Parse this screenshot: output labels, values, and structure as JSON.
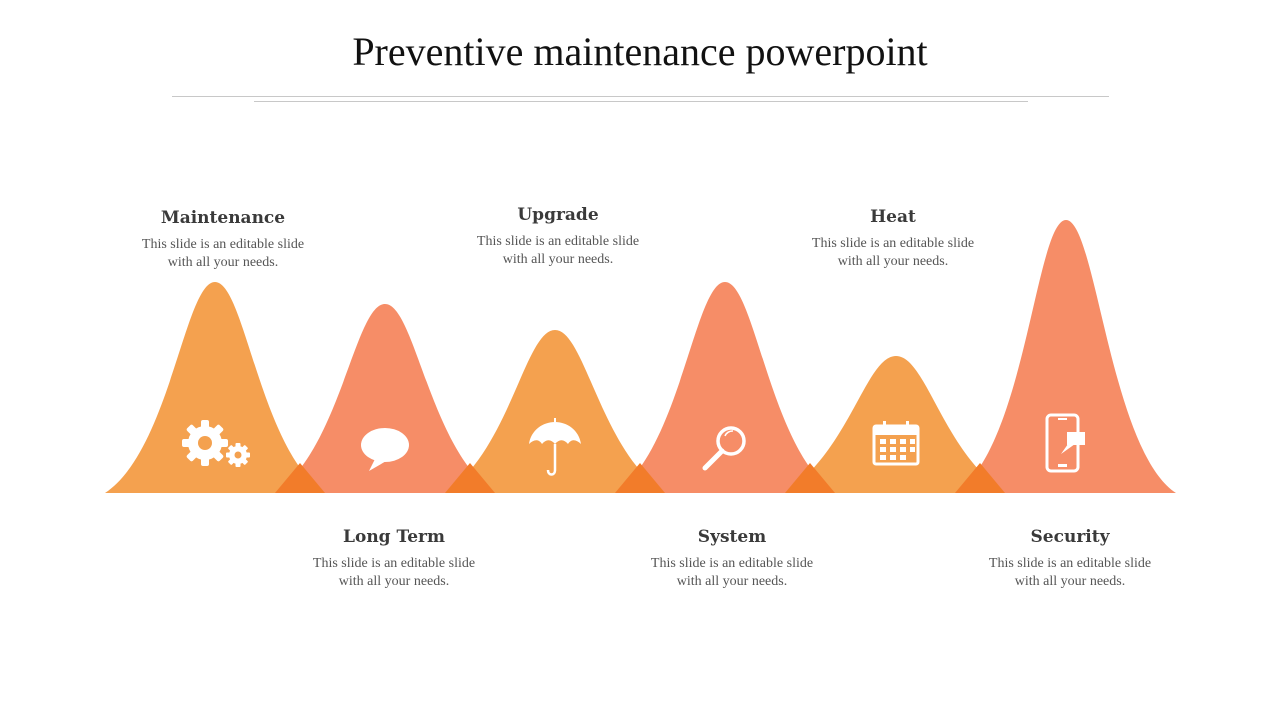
{
  "title": "Preventive maintenance powerpoint",
  "colors": {
    "orange": "#f4a14f",
    "salmon": "#f68d67",
    "overlap": "#f27c2a"
  },
  "items": [
    {
      "heading": "Maintenance",
      "desc": "This slide is an editable slide with all your needs.",
      "icon": "gears-icon"
    },
    {
      "heading": "Long Term",
      "desc": "This slide is an editable slide with all your needs.",
      "icon": "speech-bubble-icon"
    },
    {
      "heading": "Upgrade",
      "desc": "This slide is an editable slide with all your needs.",
      "icon": "umbrella-icon"
    },
    {
      "heading": "System",
      "desc": "This slide is an editable slide with all your needs.",
      "icon": "magnifier-icon"
    },
    {
      "heading": "Heat",
      "desc": "This slide is an editable slide with all your needs.",
      "icon": "calendar-icon"
    },
    {
      "heading": "Security",
      "desc": "This slide is an editable slide with all your needs.",
      "icon": "mobile-chat-icon"
    }
  ]
}
